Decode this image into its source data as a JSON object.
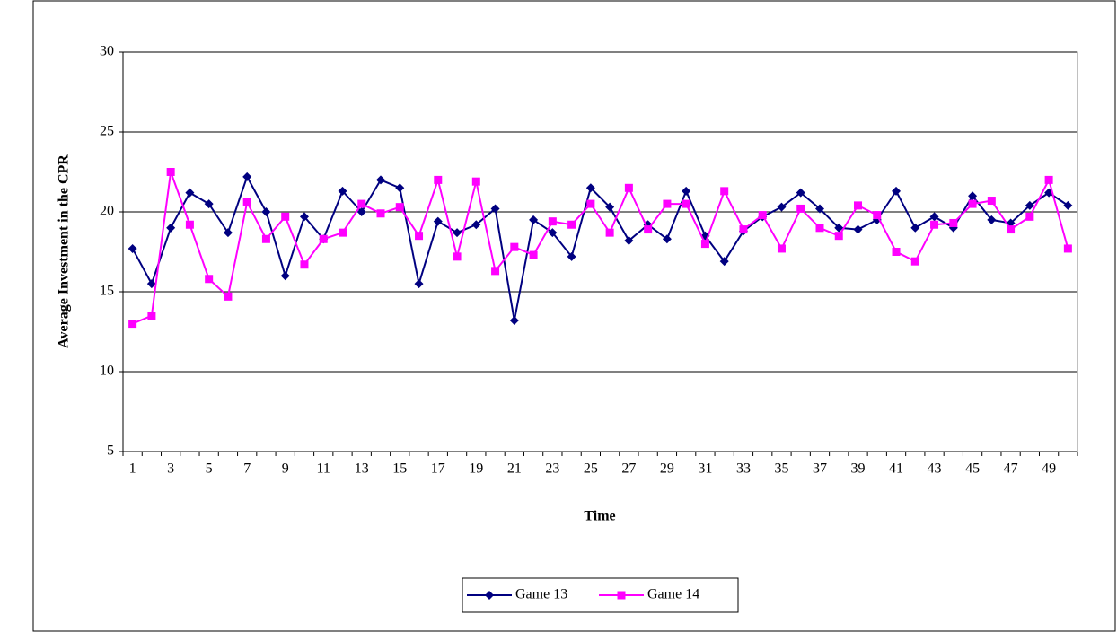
{
  "chart_data": {
    "type": "line",
    "x_label": "Time",
    "y_label": "Average Investment in the CPR",
    "categories": [
      "1",
      null,
      "3",
      null,
      "5",
      null,
      "7",
      null,
      "9",
      null,
      "11",
      null,
      "13",
      null,
      "15",
      null,
      "17",
      null,
      "19",
      null,
      "21",
      null,
      "23",
      null,
      "25",
      null,
      "27",
      null,
      "29",
      null,
      "31",
      null,
      "33",
      null,
      "35",
      null,
      "37",
      null,
      "39",
      null,
      "41",
      null,
      "43",
      null,
      "45",
      null,
      "47",
      null,
      "49",
      null
    ],
    "series": [
      {
        "name": "Game 13",
        "color": "#000080",
        "marker": "diamond",
        "values": [
          17.7,
          15.5,
          19.0,
          21.2,
          20.5,
          18.7,
          22.2,
          20.0,
          16.0,
          19.7,
          18.3,
          21.3,
          20.0,
          22.0,
          21.5,
          15.5,
          19.4,
          18.7,
          19.2,
          20.2,
          13.2,
          19.5,
          18.7,
          17.2,
          21.5,
          20.3,
          18.2,
          19.2,
          18.3,
          21.3,
          18.5,
          16.9,
          18.8,
          19.7,
          20.3,
          21.2,
          20.2,
          19.0,
          18.9,
          19.5,
          21.3,
          19.0,
          19.7,
          19.0,
          21.0,
          19.5,
          19.3,
          20.4,
          21.2,
          20.4
        ]
      },
      {
        "name": "Game 14",
        "color": "#ff00ff",
        "marker": "square",
        "values": [
          13.0,
          13.5,
          22.5,
          19.2,
          15.8,
          14.7,
          20.6,
          18.3,
          19.7,
          16.7,
          18.3,
          18.7,
          20.5,
          19.9,
          20.3,
          18.5,
          22.0,
          17.2,
          21.9,
          16.3,
          17.8,
          17.3,
          19.4,
          19.2,
          20.5,
          18.7,
          21.5,
          18.9,
          20.5,
          20.5,
          18.0,
          21.3,
          18.9,
          19.8,
          17.7,
          20.2,
          19.0,
          18.5,
          20.4,
          19.8,
          17.5,
          16.9,
          19.2,
          19.3,
          20.5,
          20.7,
          18.9,
          19.7,
          22.0,
          17.7
        ]
      }
    ],
    "ylim": [
      5,
      30
    ],
    "yticks": [
      5,
      10,
      15,
      20,
      25,
      30
    ],
    "grid": true,
    "legend": "bottom"
  }
}
